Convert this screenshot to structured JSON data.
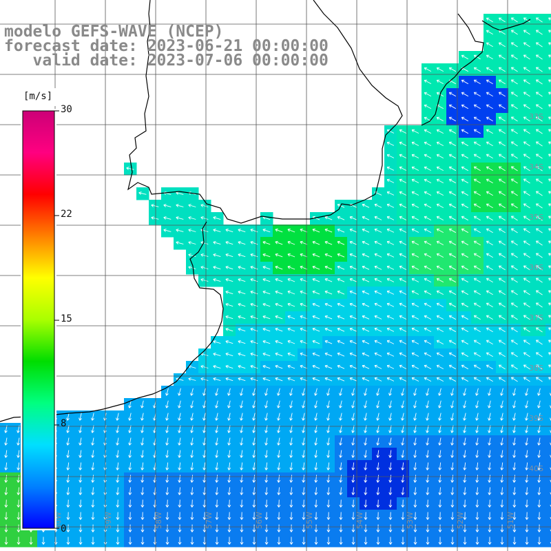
{
  "title": {
    "line1": "modelo GEFS-WAVE (NCEP)",
    "line2": "forecast date: 2023-06-21 00:00:00",
    "line3": "   valid date: 2023-07-06 00:00:00"
  },
  "colorbar": {
    "unit": "[m/s]",
    "ticks": [
      "30",
      "22",
      "15",
      "8",
      "0"
    ],
    "colors": [
      "#0000ff",
      "#0080ff",
      "#00dfff",
      "#00ff80",
      "#00dd00",
      "#aaff00",
      "#ffff00",
      "#ff8000",
      "#ff0000",
      "#ff0080",
      "#cc0077"
    ]
  },
  "map": {
    "lat_labels": [
      "33S",
      "34S",
      "35S",
      "36S",
      "37S",
      "38S",
      "39S",
      "40S"
    ],
    "lon_labels": [
      "60W",
      "59W",
      "58W",
      "57W",
      "56W",
      "55W",
      "54W",
      "53W",
      "52W",
      "51W"
    ],
    "colors": {
      "land": "#ffffff",
      "coast": "#000000",
      "grid": "#555555",
      "low_speed": "#0033ee",
      "mid_speed": "#00bfff",
      "high_speed": "#00ee44"
    }
  }
}
